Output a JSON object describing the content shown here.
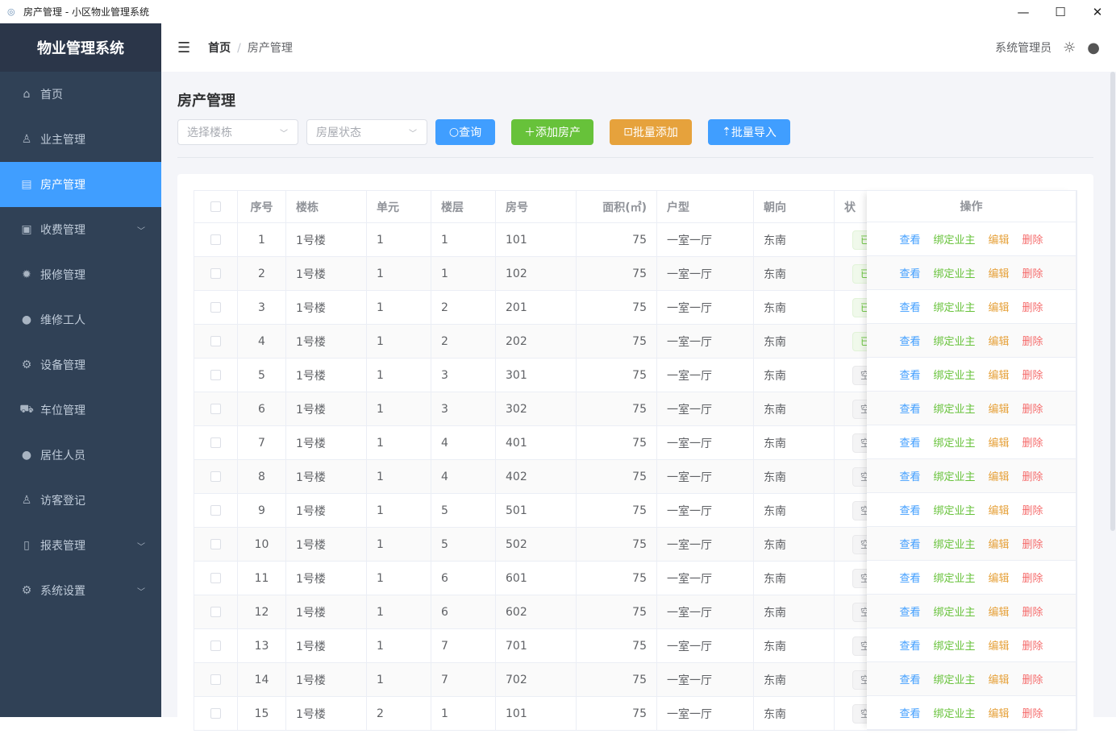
{
  "window": {
    "title": "房产管理 - 小区物业管理系统"
  },
  "sidebar": {
    "logo": "物业管理系统",
    "items": [
      {
        "label": "首页",
        "icon": "home-icon",
        "glyph": "⌂",
        "expand": false
      },
      {
        "label": "业主管理",
        "icon": "user-icon",
        "glyph": "♙",
        "expand": false
      },
      {
        "label": "房产管理",
        "icon": "building-icon",
        "glyph": "▤",
        "expand": false,
        "active": true
      },
      {
        "label": "收费管理",
        "icon": "money-icon",
        "glyph": "▣",
        "expand": true
      },
      {
        "label": "报修管理",
        "icon": "gear-filled-icon",
        "glyph": "✹",
        "expand": false
      },
      {
        "label": "维修工人",
        "icon": "user-filled-icon",
        "glyph": "●",
        "expand": false
      },
      {
        "label": "设备管理",
        "icon": "gear-icon",
        "glyph": "⚙",
        "expand": false
      },
      {
        "label": "车位管理",
        "icon": "truck-icon",
        "glyph": "⛟",
        "expand": false
      },
      {
        "label": "居住人员",
        "icon": "user-filled-icon",
        "glyph": "●",
        "expand": false
      },
      {
        "label": "访客登记",
        "icon": "user-icon",
        "glyph": "♙",
        "expand": false
      },
      {
        "label": "报表管理",
        "icon": "document-icon",
        "glyph": "▯",
        "expand": true
      },
      {
        "label": "系统设置",
        "icon": "setting-icon",
        "glyph": "⚙",
        "expand": true
      }
    ]
  },
  "header": {
    "breadcrumb": [
      "首页",
      "房产管理"
    ],
    "username": "系统管理员"
  },
  "page": {
    "title": "房产管理",
    "filters": {
      "building_placeholder": "选择楼栋",
      "status_placeholder": "房屋状态"
    },
    "buttons": {
      "query": "查询",
      "add": "添加房产",
      "batch_add": "批量添加",
      "import": "批量导入"
    }
  },
  "colors": {
    "primary": "#409eff",
    "success": "#67c23a",
    "warning": "#e6a23c",
    "danger": "#f56c6c",
    "sidebar": "#304156"
  },
  "table": {
    "headers": [
      "序号",
      "楼栋",
      "单元",
      "楼层",
      "房号",
      "面积(㎡)",
      "户型",
      "朝向",
      "状",
      "操作"
    ],
    "actions": [
      "查看",
      "绑定业主",
      "编辑",
      "删除"
    ],
    "rows": [
      [
        1,
        "1号楼",
        1,
        1,
        "101",
        75,
        "一室一厅",
        "东南",
        "已",
        "g"
      ],
      [
        2,
        "1号楼",
        1,
        1,
        "102",
        75,
        "一室一厅",
        "东南",
        "已",
        "g"
      ],
      [
        3,
        "1号楼",
        1,
        2,
        "201",
        75,
        "一室一厅",
        "东南",
        "已",
        "g"
      ],
      [
        4,
        "1号楼",
        1,
        2,
        "202",
        75,
        "一室一厅",
        "东南",
        "已",
        "g"
      ],
      [
        5,
        "1号楼",
        1,
        3,
        "301",
        75,
        "一室一厅",
        "东南",
        "空",
        "i"
      ],
      [
        6,
        "1号楼",
        1,
        3,
        "302",
        75,
        "一室一厅",
        "东南",
        "空",
        "i"
      ],
      [
        7,
        "1号楼",
        1,
        4,
        "401",
        75,
        "一室一厅",
        "东南",
        "空",
        "i"
      ],
      [
        8,
        "1号楼",
        1,
        4,
        "402",
        75,
        "一室一厅",
        "东南",
        "空",
        "i"
      ],
      [
        9,
        "1号楼",
        1,
        5,
        "501",
        75,
        "一室一厅",
        "东南",
        "空",
        "i"
      ],
      [
        10,
        "1号楼",
        1,
        5,
        "502",
        75,
        "一室一厅",
        "东南",
        "空",
        "i"
      ],
      [
        11,
        "1号楼",
        1,
        6,
        "601",
        75,
        "一室一厅",
        "东南",
        "空",
        "i"
      ],
      [
        12,
        "1号楼",
        1,
        6,
        "602",
        75,
        "一室一厅",
        "东南",
        "空",
        "i"
      ],
      [
        13,
        "1号楼",
        1,
        7,
        "701",
        75,
        "一室一厅",
        "东南",
        "空",
        "i"
      ],
      [
        14,
        "1号楼",
        1,
        7,
        "702",
        75,
        "一室一厅",
        "东南",
        "空",
        "i"
      ],
      [
        15,
        "1号楼",
        2,
        1,
        "101",
        75,
        "一室一厅",
        "东南",
        "空",
        "i"
      ]
    ]
  }
}
